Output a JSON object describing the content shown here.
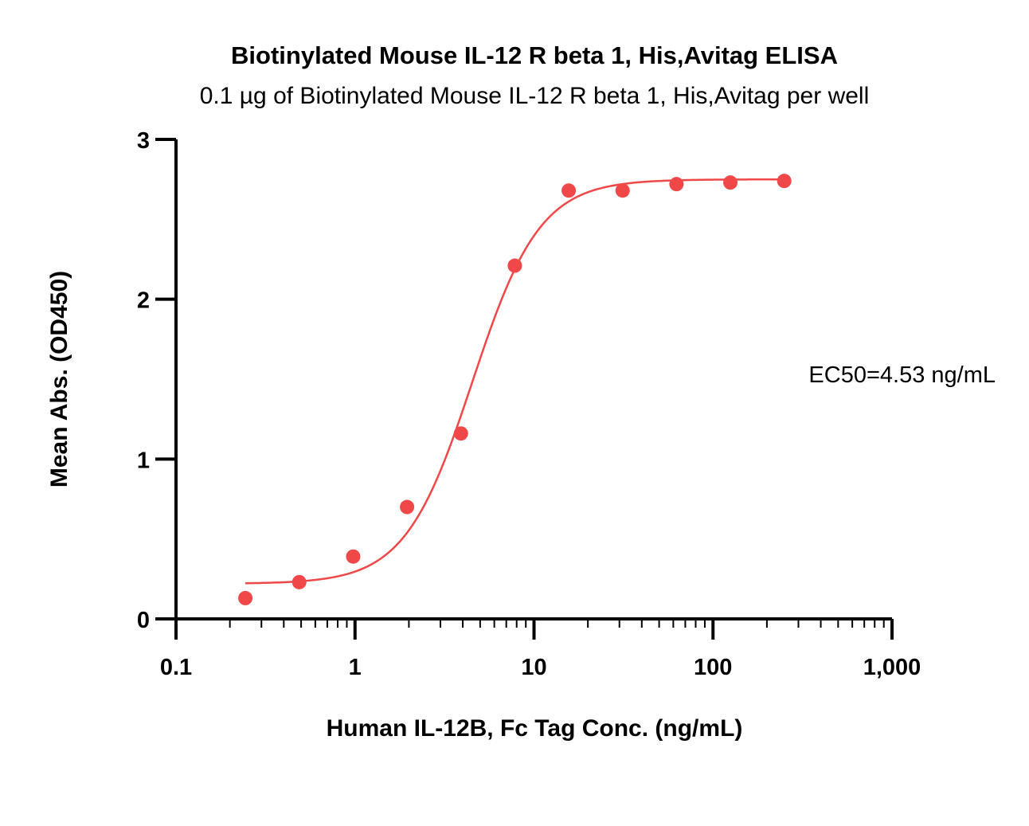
{
  "chart_data": {
    "type": "scatter",
    "title": "Biotinylated Mouse IL-12 R beta 1, His,Avitag ELISA",
    "subtitle": "0.1 µg of Biotinylated Mouse IL-12 R beta 1, His,Avitag per well",
    "xlabel": "Human IL-12B, Fc Tag Conc. (ng/mL)",
    "ylabel": "Mean Abs. (OD450)",
    "x_scale": "log",
    "xlim": [
      0.1,
      1000
    ],
    "ylim": [
      0,
      3
    ],
    "x_ticks": [
      {
        "value": 0.1,
        "label": "0.1"
      },
      {
        "value": 1,
        "label": "1"
      },
      {
        "value": 10,
        "label": "10"
      },
      {
        "value": 100,
        "label": "100"
      },
      {
        "value": 1000,
        "label": "1,000"
      }
    ],
    "y_ticks": [
      {
        "value": 0,
        "label": "0"
      },
      {
        "value": 1,
        "label": "1"
      },
      {
        "value": 2,
        "label": "2"
      },
      {
        "value": 3,
        "label": "3"
      }
    ],
    "grid": false,
    "legend": "none",
    "color": "#f04848",
    "series": [
      {
        "x": [
          0.244,
          0.488,
          0.977,
          1.953,
          3.906,
          7.813,
          15.625,
          31.25,
          62.5,
          125,
          250
        ],
        "y": [
          0.13,
          0.23,
          0.39,
          0.7,
          1.16,
          2.21,
          2.68,
          2.68,
          2.72,
          2.73,
          2.74
        ]
      }
    ],
    "fit": {
      "model": "4PL",
      "bottom": 0.22,
      "top": 2.75,
      "ec50": 4.53,
      "hill": 2.3,
      "x_range": [
        0.244,
        250
      ]
    },
    "annotation": "EC50=4.53 ng/mL"
  }
}
